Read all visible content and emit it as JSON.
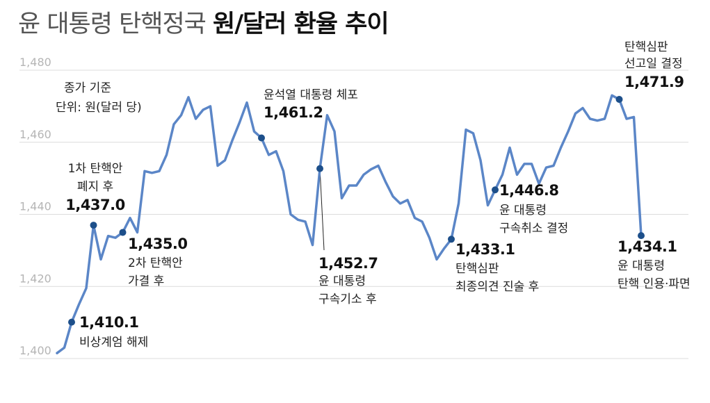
{
  "title": {
    "light": "윤 대통령 탄핵정국",
    "bold": "원/달러 환율 추이"
  },
  "notes": {
    "basis": "종가 기준",
    "unit": "단위: 원(달러 당)"
  },
  "colors": {
    "line": "#5b86c7",
    "marker": "#1d4f8a",
    "grid": "#dcdcdc",
    "tick": "#b5b5b5"
  },
  "chart_data": {
    "type": "line",
    "title": "윤 대통령 탄핵정국 원/달러 환율 추이",
    "ylim": [
      1400,
      1480
    ],
    "yticks": [
      "1,400",
      "1,420",
      "1,440",
      "1,460",
      "1,480"
    ],
    "grid": true,
    "values": [
      1401.5,
      1403.0,
      1410.1,
      1415.0,
      1419.5,
      1437.0,
      1427.5,
      1434.0,
      1433.5,
      1435.0,
      1439.0,
      1435.0,
      1452.0,
      1451.5,
      1452.0,
      1456.5,
      1465.0,
      1467.5,
      1472.5,
      1466.5,
      1469.0,
      1470.0,
      1453.5,
      1455.0,
      1460.5,
      1465.5,
      1471.0,
      1463.0,
      1461.2,
      1456.5,
      1457.5,
      1452.0,
      1440.0,
      1438.5,
      1438.0,
      1431.5,
      1452.7,
      1467.5,
      1463.0,
      1444.5,
      1448.0,
      1448.0,
      1451.0,
      1452.5,
      1453.5,
      1449.0,
      1445.0,
      1443.0,
      1444.0,
      1439.0,
      1438.0,
      1433.5,
      1427.5,
      1430.5,
      1433.1,
      1443.0,
      1463.5,
      1462.5,
      1455.0,
      1442.5,
      1446.8,
      1451.0,
      1458.5,
      1451.0,
      1454.0,
      1454.0,
      1448.5,
      1453.0,
      1453.5,
      1458.5,
      1463.0,
      1468.0,
      1469.5,
      1466.5,
      1466.0,
      1466.5,
      1473.0,
      1471.9,
      1466.5,
      1467.0,
      1434.1
    ],
    "annotations": [
      {
        "index": 2,
        "value": "1,410.1",
        "lines": [
          "비상계엄 해제"
        ]
      },
      {
        "index": 5,
        "value": "1,437.0",
        "lines": [
          "1차 탄핵안",
          "폐지 후"
        ]
      },
      {
        "index": 9,
        "value": "1,435.0",
        "lines": [
          "2차 탄핵안",
          "가결 후"
        ]
      },
      {
        "index": 28,
        "value": "1,461.2",
        "lines": [
          "윤석열 대통령 체포"
        ]
      },
      {
        "index": 36,
        "value": "1,452.7",
        "lines": [
          "윤 대통령",
          "구속기소 후"
        ]
      },
      {
        "index": 54,
        "value": "1,433.1",
        "lines": [
          "탄핵심판",
          "최종의견 진술 후"
        ]
      },
      {
        "index": 60,
        "value": "1,446.8",
        "lines": [
          "윤 대통령",
          "구속취소 결정"
        ]
      },
      {
        "index": 77,
        "value": "1,471.9",
        "lines": [
          "탄핵심판",
          "선고일 결정"
        ]
      },
      {
        "index": 80,
        "value": "1,434.1",
        "lines": [
          "윤 대통령",
          "탄핵 인용·파면"
        ]
      }
    ]
  }
}
